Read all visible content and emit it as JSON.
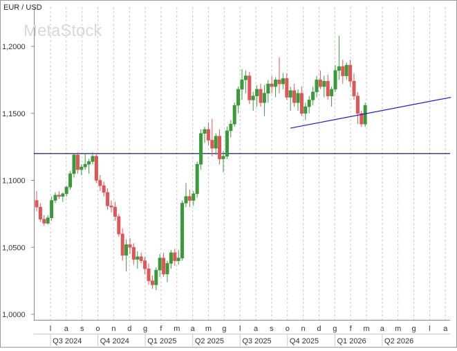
{
  "chart_data": {
    "type": "candlestick",
    "title": "EUR / USD",
    "watermark": "MetaStock",
    "ylim": [
      1.0,
      1.225
    ],
    "y_ticks": [
      {
        "value": 1.0,
        "label": "1,0000"
      },
      {
        "value": 1.05,
        "label": "1,0500"
      },
      {
        "value": 1.1,
        "label": "1,1000"
      },
      {
        "value": 1.15,
        "label": "1,1500"
      },
      {
        "value": 1.2,
        "label": "1,2000"
      }
    ],
    "month_labels": [
      "l",
      "a",
      "s",
      "o",
      "n",
      "d",
      "g",
      "f",
      "m",
      "a",
      "m",
      "g",
      "l",
      "a",
      "s",
      "o",
      "n",
      "d",
      "g",
      "f",
      "m",
      "a",
      "m",
      "g",
      "l",
      "a"
    ],
    "quarter_labels": [
      "Q3 2024",
      "Q4 2024",
      "Q1 2025",
      "Q2 2025",
      "Q3 2025",
      "Q4 2025",
      "Q1 2026",
      "Q2 2026"
    ],
    "horizontal_line": {
      "value": 1.12,
      "color": "#00007a"
    },
    "trend_line": {
      "start": {
        "week": 68,
        "value": 1.139
      },
      "end": {
        "week": 111,
        "value": 1.162
      },
      "color": "#1a1adb"
    },
    "colors": {
      "up": "#3a9a3a",
      "down": "#e05555",
      "grid": "#c8c8c8"
    },
    "candles": [
      [
        1.085,
        1.092,
        1.077,
        1.08
      ],
      [
        1.08,
        1.083,
        1.069,
        1.071
      ],
      [
        1.071,
        1.074,
        1.066,
        1.068
      ],
      [
        1.068,
        1.074,
        1.067,
        1.072
      ],
      [
        1.072,
        1.088,
        1.07,
        1.085
      ],
      [
        1.085,
        1.091,
        1.083,
        1.089
      ],
      [
        1.089,
        1.092,
        1.086,
        1.088
      ],
      [
        1.088,
        1.091,
        1.084,
        1.09
      ],
      [
        1.09,
        1.096,
        1.088,
        1.095
      ],
      [
        1.095,
        1.107,
        1.093,
        1.105
      ],
      [
        1.105,
        1.12,
        1.102,
        1.119
      ],
      [
        1.119,
        1.121,
        1.105,
        1.108
      ],
      [
        1.108,
        1.112,
        1.104,
        1.11
      ],
      [
        1.11,
        1.12,
        1.108,
        1.112
      ],
      [
        1.112,
        1.116,
        1.105,
        1.114
      ],
      [
        1.114,
        1.121,
        1.112,
        1.118
      ],
      [
        1.118,
        1.12,
        1.098,
        1.1
      ],
      [
        1.1,
        1.104,
        1.092,
        1.096
      ],
      [
        1.096,
        1.099,
        1.088,
        1.091
      ],
      [
        1.091,
        1.094,
        1.078,
        1.081
      ],
      [
        1.081,
        1.085,
        1.076,
        1.08
      ],
      [
        1.08,
        1.084,
        1.07,
        1.073
      ],
      [
        1.073,
        1.075,
        1.058,
        1.06
      ],
      [
        1.06,
        1.064,
        1.04,
        1.044
      ],
      [
        1.044,
        1.056,
        1.032,
        1.052
      ],
      [
        1.052,
        1.057,
        1.045,
        1.05
      ],
      [
        1.05,
        1.053,
        1.037,
        1.041
      ],
      [
        1.041,
        1.047,
        1.034,
        1.043
      ],
      [
        1.043,
        1.046,
        1.038,
        1.04
      ],
      [
        1.04,
        1.043,
        1.03,
        1.034
      ],
      [
        1.034,
        1.038,
        1.022,
        1.025
      ],
      [
        1.025,
        1.029,
        1.019,
        1.022
      ],
      [
        1.022,
        1.035,
        1.018,
        1.033
      ],
      [
        1.033,
        1.045,
        1.028,
        1.042
      ],
      [
        1.042,
        1.046,
        1.028,
        1.03
      ],
      [
        1.03,
        1.04,
        1.024,
        1.038
      ],
      [
        1.038,
        1.048,
        1.034,
        1.046
      ],
      [
        1.046,
        1.049,
        1.036,
        1.04
      ],
      [
        1.04,
        1.048,
        1.037,
        1.042
      ],
      [
        1.042,
        1.085,
        1.04,
        1.083
      ],
      [
        1.083,
        1.098,
        1.08,
        1.088
      ],
      [
        1.088,
        1.093,
        1.08,
        1.085
      ],
      [
        1.085,
        1.092,
        1.081,
        1.09
      ],
      [
        1.09,
        1.114,
        1.087,
        1.112
      ],
      [
        1.112,
        1.138,
        1.108,
        1.135
      ],
      [
        1.135,
        1.14,
        1.128,
        1.138
      ],
      [
        1.138,
        1.143,
        1.126,
        1.13
      ],
      [
        1.13,
        1.146,
        1.118,
        1.124
      ],
      [
        1.124,
        1.135,
        1.119,
        1.133
      ],
      [
        1.133,
        1.138,
        1.112,
        1.116
      ],
      [
        1.116,
        1.122,
        1.106,
        1.118
      ],
      [
        1.118,
        1.14,
        1.116,
        1.137
      ],
      [
        1.137,
        1.145,
        1.132,
        1.142
      ],
      [
        1.142,
        1.158,
        1.14,
        1.156
      ],
      [
        1.156,
        1.17,
        1.15,
        1.168
      ],
      [
        1.168,
        1.183,
        1.16,
        1.175
      ],
      [
        1.175,
        1.182,
        1.165,
        1.178
      ],
      [
        1.178,
        1.181,
        1.157,
        1.16
      ],
      [
        1.16,
        1.166,
        1.152,
        1.163
      ],
      [
        1.163,
        1.171,
        1.155,
        1.168
      ],
      [
        1.168,
        1.172,
        1.155,
        1.158
      ],
      [
        1.158,
        1.171,
        1.148,
        1.165
      ],
      [
        1.165,
        1.175,
        1.158,
        1.172
      ],
      [
        1.172,
        1.178,
        1.165,
        1.17
      ],
      [
        1.17,
        1.177,
        1.162,
        1.175
      ],
      [
        1.175,
        1.192,
        1.165,
        1.172
      ],
      [
        1.172,
        1.18,
        1.168,
        1.176
      ],
      [
        1.176,
        1.18,
        1.16,
        1.162
      ],
      [
        1.162,
        1.17,
        1.152,
        1.167
      ],
      [
        1.167,
        1.172,
        1.155,
        1.158
      ],
      [
        1.158,
        1.168,
        1.152,
        1.165
      ],
      [
        1.165,
        1.17,
        1.148,
        1.15
      ],
      [
        1.15,
        1.158,
        1.145,
        1.155
      ],
      [
        1.155,
        1.163,
        1.15,
        1.16
      ],
      [
        1.16,
        1.17,
        1.156,
        1.166
      ],
      [
        1.166,
        1.178,
        1.162,
        1.175
      ],
      [
        1.175,
        1.182,
        1.168,
        1.17
      ],
      [
        1.17,
        1.178,
        1.162,
        1.174
      ],
      [
        1.174,
        1.179,
        1.16,
        1.163
      ],
      [
        1.163,
        1.17,
        1.155,
        1.168
      ],
      [
        1.168,
        1.186,
        1.166,
        1.182
      ],
      [
        1.182,
        1.208,
        1.175,
        1.185
      ],
      [
        1.185,
        1.19,
        1.172,
        1.178
      ],
      [
        1.178,
        1.188,
        1.175,
        1.186
      ],
      [
        1.186,
        1.19,
        1.17,
        1.174
      ],
      [
        1.174,
        1.18,
        1.16,
        1.163
      ],
      [
        1.163,
        1.166,
        1.142,
        1.15
      ],
      [
        1.15,
        1.152,
        1.14,
        1.142
      ],
      [
        1.142,
        1.158,
        1.14,
        1.156
      ]
    ]
  }
}
